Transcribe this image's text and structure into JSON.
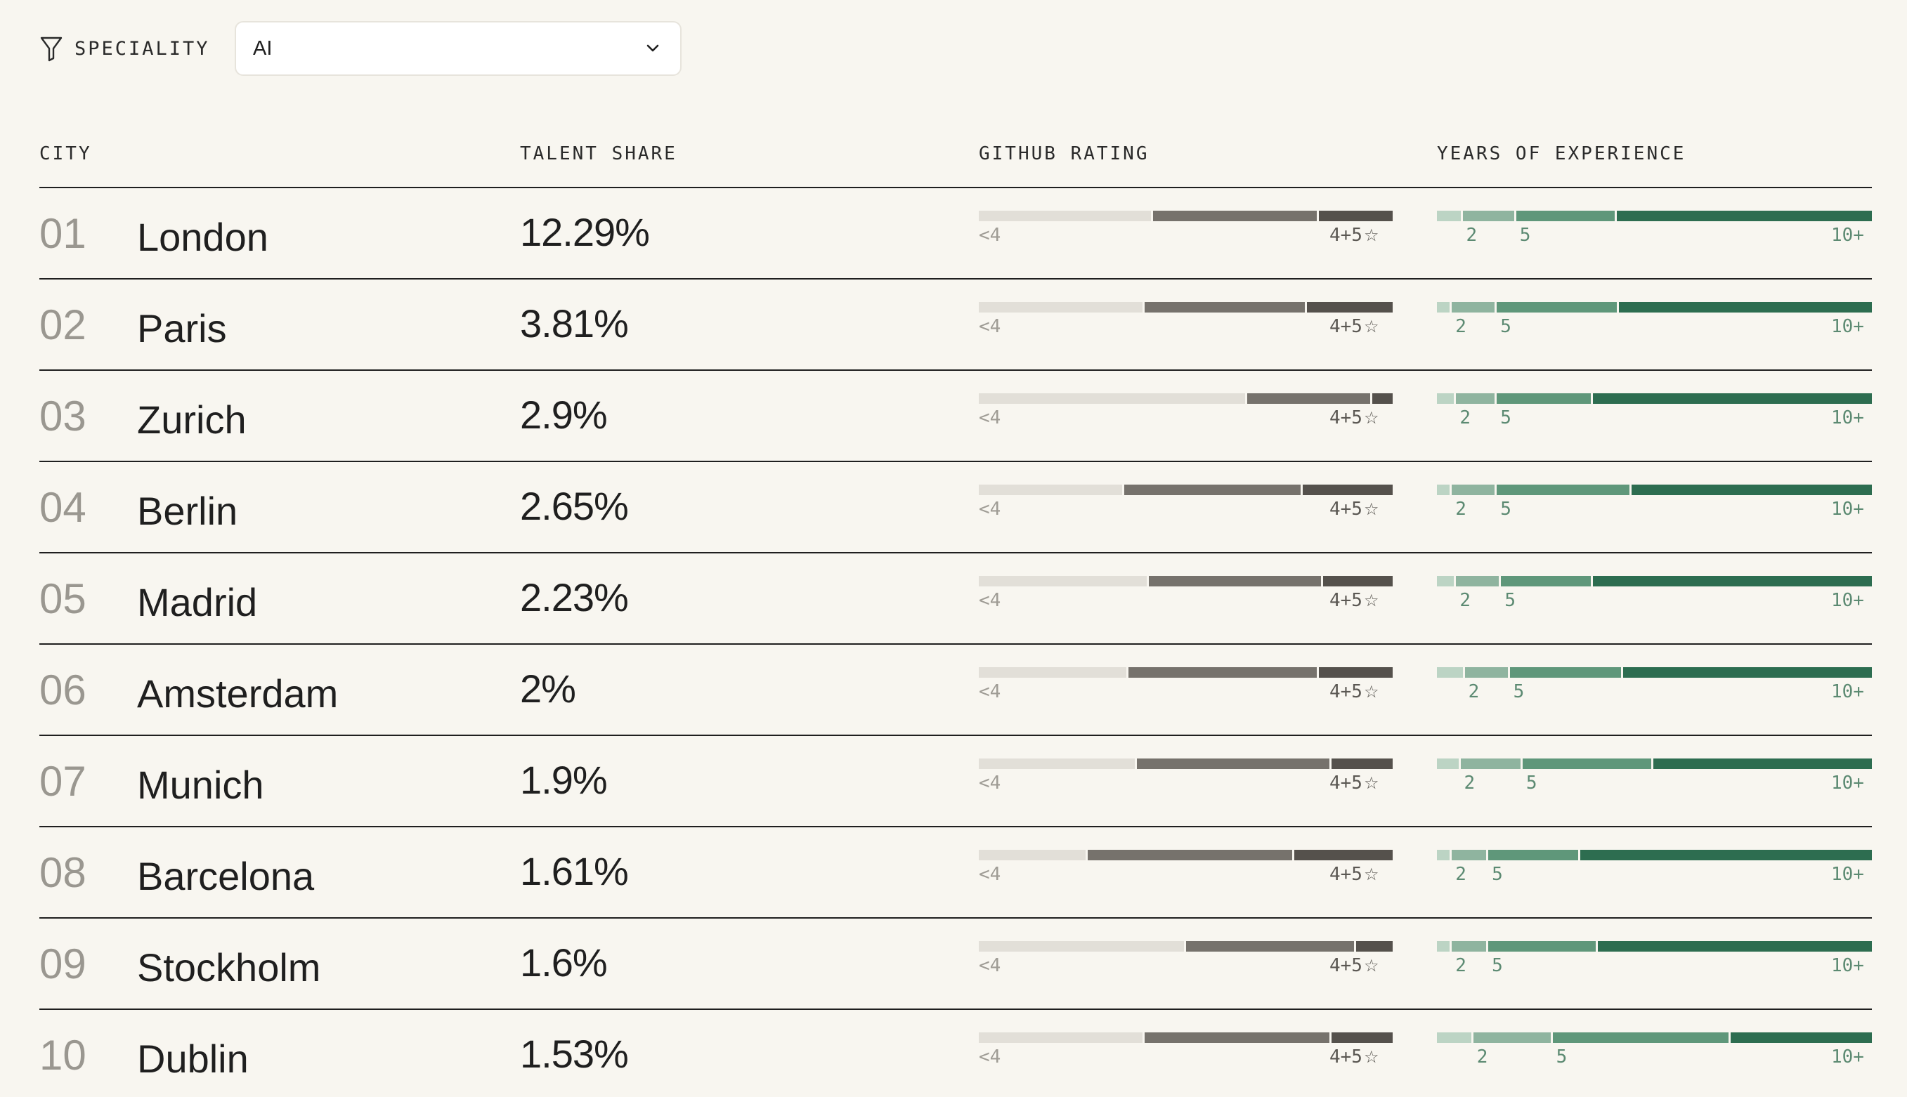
{
  "filter": {
    "icon": "filter-icon",
    "label": "SPECIALITY",
    "selected": "AI",
    "chevron": "chevron-down-icon"
  },
  "headers": {
    "city": "CITY",
    "talent_share": "TALENT SHARE",
    "github_rating": "GITHUB RATING",
    "years_experience": "YEARS OF EXPERIENCE"
  },
  "legend": {
    "github_low": "<4",
    "github_high": "4+5",
    "github_star": "☆",
    "years_2": "2",
    "years_5": "5",
    "years_10": "10+"
  },
  "colors": {
    "background": "#f8f6f0",
    "github_low": "#e2dfd8",
    "github_mid": "#76726c",
    "github_high": "#55514c",
    "years_lt2": "#bcd4c4",
    "years_2_5": "#8fb49f",
    "years_5_10": "#5f977a",
    "years_10plus": "#2d6d50"
  },
  "rows": [
    {
      "rank": "01",
      "city": "London",
      "share": "12.29%",
      "github": [
        0.42,
        0.4,
        0.18
      ],
      "years": [
        0.055,
        0.12,
        0.23,
        0.595
      ]
    },
    {
      "rank": "02",
      "city": "Paris",
      "share": "3.81%",
      "github": [
        0.4,
        0.39,
        0.21
      ],
      "years": [
        0.03,
        0.1,
        0.28,
        0.59
      ]
    },
    {
      "rank": "03",
      "city": "Zurich",
      "share": "2.9%",
      "github": [
        0.65,
        0.3,
        0.05
      ],
      "years": [
        0.04,
        0.09,
        0.22,
        0.65
      ]
    },
    {
      "rank": "04",
      "city": "Berlin",
      "share": "2.65%",
      "github": [
        0.35,
        0.43,
        0.22
      ],
      "years": [
        0.03,
        0.1,
        0.31,
        0.56
      ]
    },
    {
      "rank": "05",
      "city": "Madrid",
      "share": "2.23%",
      "github": [
        0.41,
        0.42,
        0.17
      ],
      "years": [
        0.04,
        0.1,
        0.21,
        0.65
      ]
    },
    {
      "rank": "06",
      "city": "Amsterdam",
      "share": "2%",
      "github": [
        0.36,
        0.46,
        0.18
      ],
      "years": [
        0.06,
        0.1,
        0.26,
        0.58
      ]
    },
    {
      "rank": "07",
      "city": "Munich",
      "share": "1.9%",
      "github": [
        0.38,
        0.47,
        0.15
      ],
      "years": [
        0.05,
        0.14,
        0.3,
        0.51
      ]
    },
    {
      "rank": "08",
      "city": "Barcelona",
      "share": "1.61%",
      "github": [
        0.26,
        0.5,
        0.24
      ],
      "years": [
        0.03,
        0.08,
        0.21,
        0.68
      ]
    },
    {
      "rank": "09",
      "city": "Stockholm",
      "share": "1.6%",
      "github": [
        0.5,
        0.41,
        0.09
      ],
      "years": [
        0.03,
        0.08,
        0.25,
        0.64
      ]
    },
    {
      "rank": "10",
      "city": "Dublin",
      "share": "1.53%",
      "github": [
        0.4,
        0.45,
        0.15
      ],
      "years": [
        0.08,
        0.18,
        0.41,
        0.33
      ]
    }
  ]
}
